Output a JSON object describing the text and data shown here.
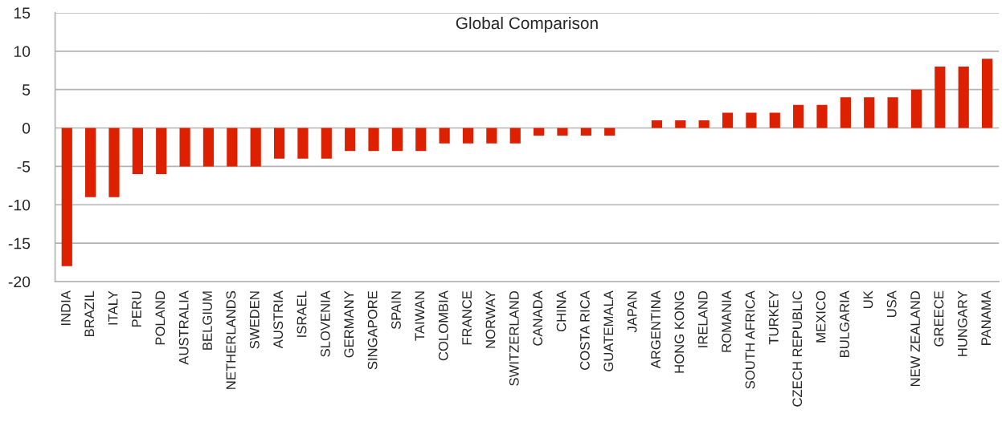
{
  "chart_data": {
    "type": "bar",
    "title": "Global Comparison",
    "categories": [
      "INDIA",
      "BRAZIL",
      "ITALY",
      "PERU",
      "POLAND",
      "AUSTRALIA",
      "BELGIUM",
      "NETHERLANDS",
      "SWEDEN",
      "AUSTRIA",
      "ISRAEL",
      "SLOVENIA",
      "GERMANY",
      "SINGAPORE",
      "SPAIN",
      "TAIWAN",
      "COLOMBIA",
      "FRANCE",
      "NORWAY",
      "SWITZERLAND",
      "CANADA",
      "CHINA",
      "COSTA RICA",
      "GUATEMALA",
      "JAPAN",
      "ARGENTINA",
      "HONG KONG",
      "IRELAND",
      "ROMANIA",
      "SOUTH AFRICA",
      "TURKEY",
      "CZECH REPUBLIC",
      "MEXICO",
      "BULGARIA",
      "UK",
      "USA",
      "NEW ZEALAND",
      "GREECE",
      "HUNGARY",
      "PANAMA"
    ],
    "values": [
      -18,
      -9,
      -9,
      -6,
      -6,
      -5,
      -5,
      -5,
      -5,
      -4,
      -4,
      -4,
      -3,
      -3,
      -3,
      -3,
      -2,
      -2,
      -2,
      -2,
      -1,
      -1,
      -1,
      -1,
      0,
      1,
      1,
      1,
      2,
      2,
      2,
      3,
      3,
      4,
      4,
      4,
      5,
      8,
      8,
      9
    ],
    "color": "#dd2000",
    "ylim": [
      -20,
      15
    ],
    "yticks": [
      -20,
      -15,
      -10,
      -5,
      0,
      5,
      10,
      15
    ],
    "grid": "y"
  }
}
